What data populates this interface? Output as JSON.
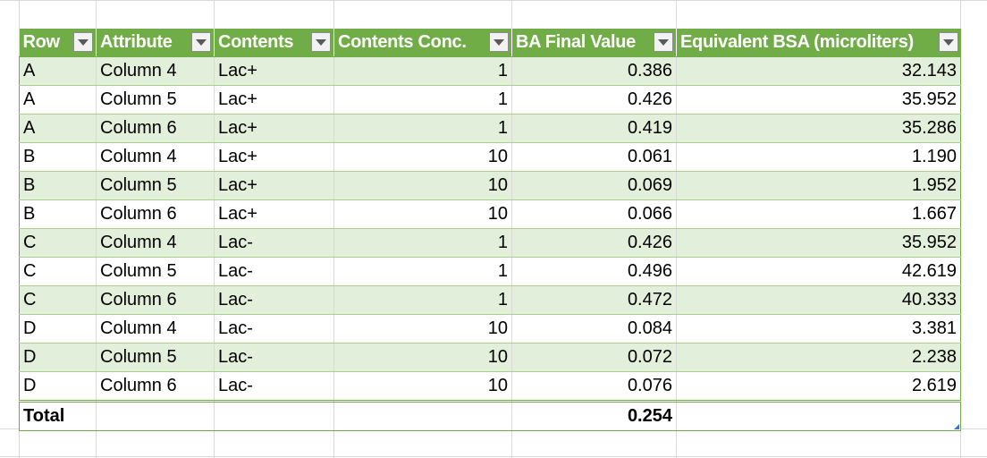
{
  "table": {
    "headers": [
      "Row",
      "Attribute",
      "Contents",
      "Contents Conc.",
      "BA Final Value",
      "Equivalent BSA (microliters)"
    ],
    "rows": [
      [
        "A",
        "Column 4",
        "Lac+",
        "1",
        "0.386",
        "32.143"
      ],
      [
        "A",
        "Column 5",
        "Lac+",
        "1",
        "0.426",
        "35.952"
      ],
      [
        "A",
        "Column 6",
        "Lac+",
        "1",
        "0.419",
        "35.286"
      ],
      [
        "B",
        "Column 4",
        "Lac+",
        "10",
        "0.061",
        "1.190"
      ],
      [
        "B",
        "Column 5",
        "Lac+",
        "10",
        "0.069",
        "1.952"
      ],
      [
        "B",
        "Column 6",
        "Lac+",
        "10",
        "0.066",
        "1.667"
      ],
      [
        "C",
        "Column 4",
        "Lac-",
        "1",
        "0.426",
        "35.952"
      ],
      [
        "C",
        "Column 5",
        "Lac-",
        "1",
        "0.496",
        "42.619"
      ],
      [
        "C",
        "Column 6",
        "Lac-",
        "1",
        "0.472",
        "40.333"
      ],
      [
        "D",
        "Column 4",
        "Lac-",
        "10",
        "0.084",
        "3.381"
      ],
      [
        "D",
        "Column 5",
        "Lac-",
        "10",
        "0.072",
        "2.238"
      ],
      [
        "D",
        "Column 6",
        "Lac-",
        "10",
        "0.076",
        "2.619"
      ]
    ],
    "total": {
      "label": "Total",
      "ba_final_value": "0.254"
    }
  },
  "colors": {
    "header_bg": "#70ad47",
    "band_bg": "#e2efda",
    "border": "#a9d08e",
    "gridline": "#d9d9d9"
  },
  "icons": {
    "filter": "filter-dropdown-icon",
    "resize": "table-resize-handle-icon"
  }
}
